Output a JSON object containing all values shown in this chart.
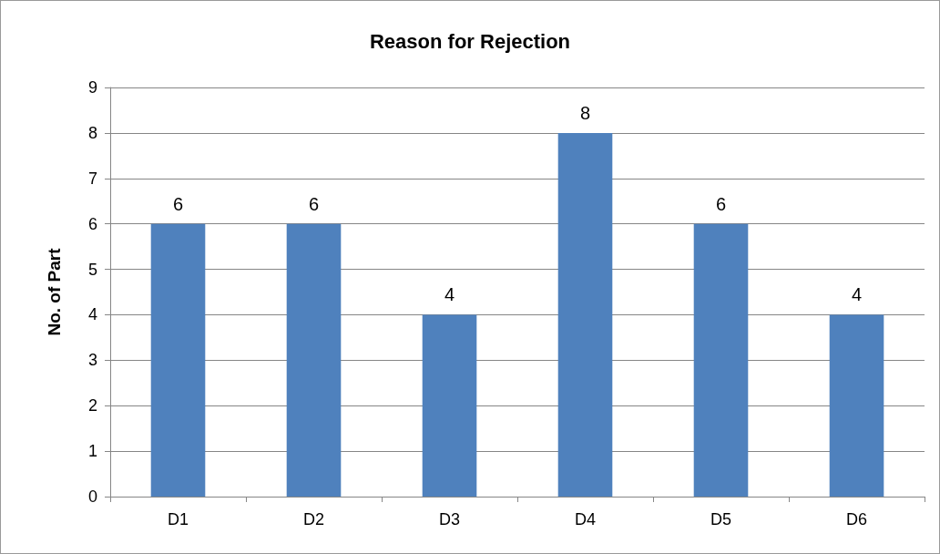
{
  "chart_data": {
    "type": "bar",
    "title": "Reason for Rejection",
    "ylabel": "No. of Part",
    "categories": [
      "D1",
      "D2",
      "D3",
      "D4",
      "D5",
      "D6"
    ],
    "values": [
      6,
      6,
      4,
      8,
      6,
      4
    ],
    "color": "#4f81bd",
    "ylim": [
      0,
      9
    ],
    "yticks": [
      0,
      1,
      2,
      3,
      4,
      5,
      6,
      7,
      8,
      9
    ],
    "grid": "y",
    "data_labels": true
  }
}
